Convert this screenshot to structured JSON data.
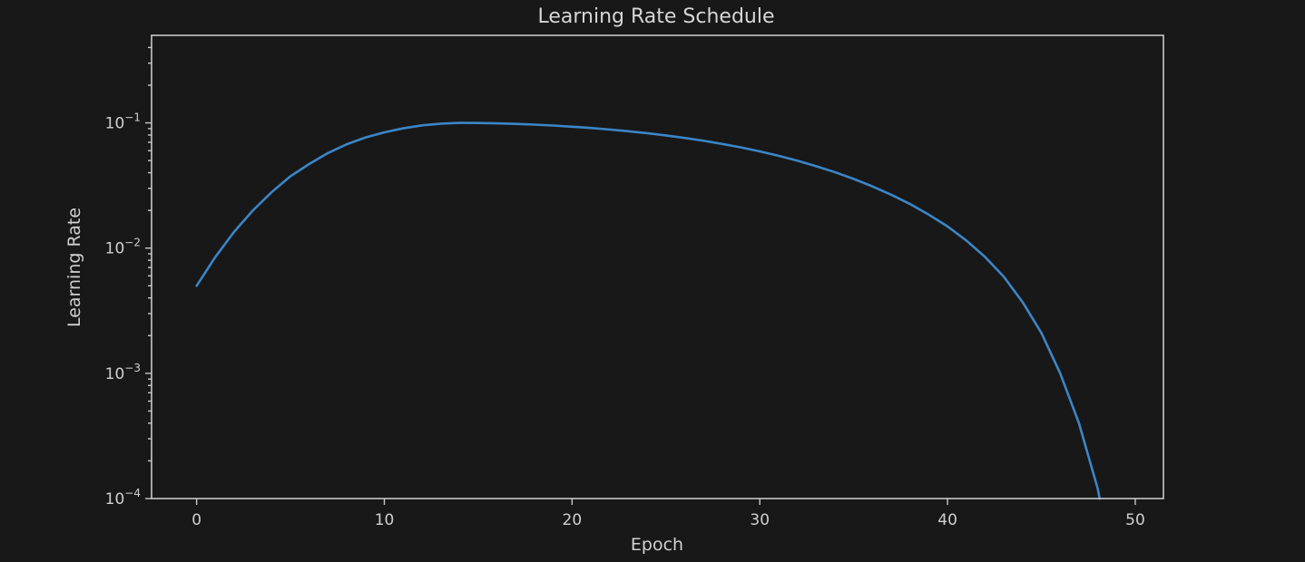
{
  "chart_data": {
    "type": "line",
    "title": "Learning Rate Schedule",
    "xlabel": "Epoch",
    "ylabel": "Learning Rate",
    "xlim": [
      -2.4,
      51.5
    ],
    "ylim": [
      0.0001,
      0.5
    ],
    "yscale": "log",
    "grid": false,
    "x_ticks": [
      0,
      10,
      20,
      30,
      40,
      50
    ],
    "y_ticks": [
      {
        "value": 0.0001,
        "base": "10",
        "exp": "−4"
      },
      {
        "value": 0.001,
        "base": "10",
        "exp": "−3"
      },
      {
        "value": 0.01,
        "base": "10",
        "exp": "−2"
      },
      {
        "value": 0.1,
        "base": "10",
        "exp": "−1"
      }
    ],
    "series": [
      {
        "color": "#3b86c8",
        "x": [
          0,
          1,
          2,
          3,
          4,
          5,
          6,
          7,
          8,
          9,
          10,
          11,
          12,
          13,
          14,
          15,
          16,
          17,
          18,
          19,
          20,
          21,
          22,
          23,
          24,
          25,
          26,
          27,
          28,
          29,
          30,
          31,
          32,
          33,
          34,
          35,
          36,
          37,
          38,
          39,
          40,
          41,
          42,
          43,
          44,
          45,
          46,
          47,
          48,
          48.1
        ],
        "y": [
          0.005,
          0.0085,
          0.0135,
          0.02,
          0.028,
          0.0375,
          0.047,
          0.0575,
          0.0675,
          0.0765,
          0.084,
          0.0905,
          0.0955,
          0.0985,
          0.1,
          0.0998,
          0.0992,
          0.0982,
          0.0968,
          0.0952,
          0.0932,
          0.091,
          0.0885,
          0.0857,
          0.0827,
          0.0794,
          0.0758,
          0.072,
          0.0679,
          0.0637,
          0.0592,
          0.0546,
          0.0499,
          0.0451,
          0.0404,
          0.0357,
          0.0311,
          0.0267,
          0.0225,
          0.0185,
          0.0149,
          0.0115,
          0.0085,
          0.0059,
          0.0037,
          0.0021,
          0.001,
          0.0004,
          0.00012,
          0.0001
        ]
      }
    ]
  }
}
